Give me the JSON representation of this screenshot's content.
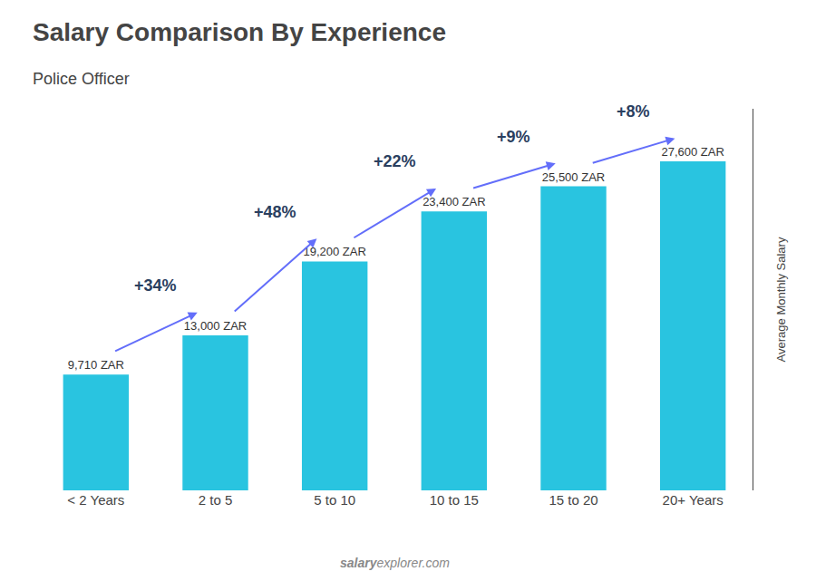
{
  "chart_data": {
    "type": "bar",
    "title": "Salary Comparison By Experience",
    "subtitle": "Police Officer",
    "ylabel": "Average Monthly Salary",
    "categories": [
      "< 2 Years",
      "2 to 5",
      "5 to 10",
      "10 to 15",
      "15 to 20",
      "20+ Years"
    ],
    "values": [
      9710,
      13000,
      19200,
      23400,
      25500,
      27600
    ],
    "value_labels": [
      "9,710 ZAR",
      "13,000 ZAR",
      "19,200 ZAR",
      "23,400 ZAR",
      "25,500 ZAR",
      "27,600 ZAR"
    ],
    "data_labels": true,
    "annotations": [
      "+34%",
      "+48%",
      "+22%",
      "+9%",
      "+8%"
    ],
    "footer": [
      "salary",
      "explorer.com"
    ],
    "color": "#29C4E0",
    "ylim": [
      0,
      32000
    ],
    "tick_labels": "x",
    "grid": false
  }
}
